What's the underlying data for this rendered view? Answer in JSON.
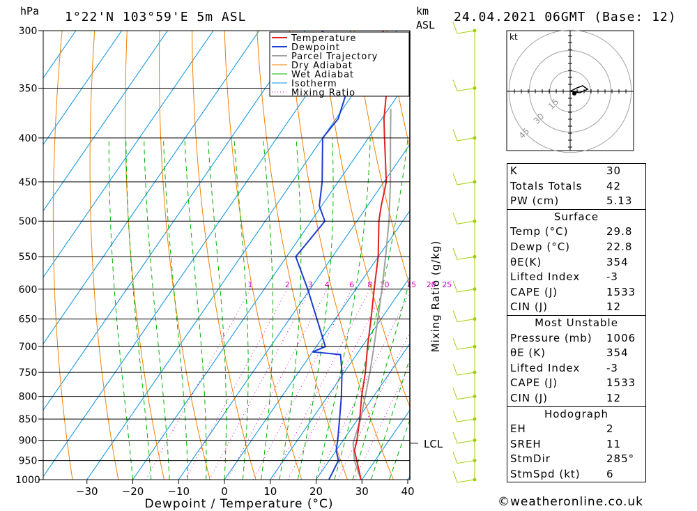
{
  "header": {
    "unit_hpa": "hPa",
    "location": "1°22'N  103°59'E  5m  ASL",
    "unit_km": "km",
    "unit_asl": "ASL",
    "datetime": "24.04.2021  06GMT  (Base: 12)"
  },
  "colors": {
    "temperature": "#e02020",
    "dewpoint": "#1c3cd0",
    "parcel": "#a0a0a0",
    "dry_adiabat": "#f08000",
    "wet_adiabat": "#00b000",
    "isotherm": "#0090e0",
    "mixing_ratio": "#d000c0",
    "wind_barb": "#a0d000"
  },
  "chart_data": {
    "type": "skew-t",
    "xlabel": "Dewpoint / Temperature (°C)",
    "ylabel": "hPa",
    "right_label": "Mixing Ratio (g/kg)",
    "pressure_levels": [
      300,
      350,
      400,
      450,
      500,
      550,
      600,
      650,
      700,
      750,
      800,
      850,
      900,
      950,
      1000
    ],
    "x_ticks": [
      -30,
      -20,
      -10,
      0,
      10,
      20,
      30,
      40
    ],
    "xlim": [
      -40,
      40
    ],
    "ylim": [
      1000,
      300
    ],
    "mixing_ratio_labels": [
      "1",
      "2",
      "3",
      "4",
      "6",
      "8",
      "10",
      "15",
      "20",
      "25"
    ],
    "lcl_label": "LCL",
    "lcl_pressure": 907,
    "legend": [
      "Temperature",
      "Dewpoint",
      "Parcel Trajectory",
      "Dry Adiabat",
      "Wet Adiabat",
      "Isotherm",
      "Mixing Ratio"
    ],
    "temperature_profile": [
      [
        1000,
        29.8
      ],
      [
        950,
        26.0
      ],
      [
        925,
        24.0
      ],
      [
        900,
        23.0
      ],
      [
        850,
        20.4
      ],
      [
        800,
        17.4
      ],
      [
        750,
        14.6
      ],
      [
        700,
        11.2
      ],
      [
        650,
        7.8
      ],
      [
        600,
        4.0
      ],
      [
        550,
        0.0
      ],
      [
        500,
        -5.2
      ],
      [
        480,
        -7.0
      ],
      [
        450,
        -9.5
      ],
      [
        400,
        -16.5
      ],
      [
        380,
        -19.5
      ],
      [
        350,
        -23.5
      ],
      [
        320,
        -29.0
      ],
      [
        300,
        -33.0
      ]
    ],
    "dewpoint_profile": [
      [
        1000,
        22.8
      ],
      [
        950,
        22.0
      ],
      [
        925,
        20.0
      ],
      [
        900,
        18.8
      ],
      [
        850,
        16.0
      ],
      [
        800,
        13.0
      ],
      [
        750,
        9.5
      ],
      [
        715,
        6.5
      ],
      [
        710,
        0.0
      ],
      [
        700,
        2.0
      ],
      [
        650,
        -4.0
      ],
      [
        600,
        -10.5
      ],
      [
        550,
        -18.0
      ],
      [
        500,
        -17.0
      ],
      [
        480,
        -20.5
      ],
      [
        450,
        -23.5
      ],
      [
        400,
        -30.0
      ],
      [
        380,
        -29.5
      ],
      [
        350,
        -32.0
      ],
      [
        340,
        -42.0
      ],
      [
        330,
        -37.0
      ],
      [
        320,
        -47.0
      ],
      [
        300,
        -46.0
      ]
    ],
    "parcel_profile": [
      [
        1000,
        29.8
      ],
      [
        950,
        25.5
      ],
      [
        907,
        22.6
      ],
      [
        850,
        20.6
      ],
      [
        800,
        18.2
      ],
      [
        750,
        15.6
      ],
      [
        700,
        12.6
      ],
      [
        650,
        9.3
      ],
      [
        600,
        5.7
      ],
      [
        550,
        1.6
      ],
      [
        500,
        -3.0
      ],
      [
        450,
        -8.6
      ],
      [
        400,
        -15.2
      ],
      [
        370,
        -19.5
      ]
    ],
    "wind_barbs_pressure": [
      1000,
      950,
      900,
      850,
      800,
      750,
      700,
      650,
      600,
      550,
      500,
      450,
      400,
      350,
      300
    ],
    "hodograph": {
      "unit": "kt",
      "ring_labels": [
        "15",
        "30",
        "45"
      ]
    }
  },
  "indices": {
    "k_label": "K",
    "k": "30",
    "tt_label": "Totals Totals",
    "tt": "42",
    "pw_label": "PW (cm)",
    "pw": "5.13"
  },
  "surface": {
    "title": "Surface",
    "temp_label": "Temp (°C)",
    "temp": "29.8",
    "dewp_label": "Dewp (°C)",
    "dewp": "22.8",
    "theta_label": "θE(K)",
    "theta": "354",
    "li_label": "Lifted Index",
    "li": "-3",
    "cape_label": "CAPE (J)",
    "cape": "1533",
    "cin_label": "CIN (J)",
    "cin": "12"
  },
  "most_unstable": {
    "title": "Most Unstable",
    "pressure_label": "Pressure (mb)",
    "pressure": "1006",
    "theta_label": "θE (K)",
    "theta": "354",
    "li_label": "Lifted Index",
    "li": "-3",
    "cape_label": "CAPE (J)",
    "cape": "1533",
    "cin_label": "CIN (J)",
    "cin": "12"
  },
  "hodograph_block": {
    "title": "Hodograph",
    "eh_label": "EH",
    "eh": "2",
    "srh_label": "SREH",
    "srh": "11",
    "stmdir_label": "StmDir",
    "stmdir": "285°",
    "stmspd_label": "StmSpd (kt)",
    "stmspd": "6"
  },
  "footer": {
    "copyright": "©weatheronline.co.uk"
  }
}
